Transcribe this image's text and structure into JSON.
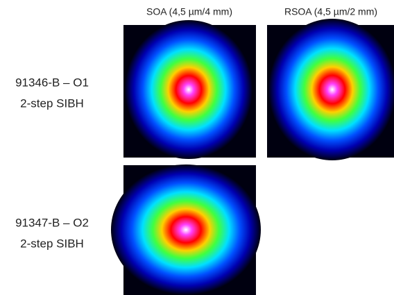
{
  "columns": [
    "SOA (4,5 µm/4 mm)",
    "RSOA (4,5 µm/2 mm)"
  ],
  "rows": [
    {
      "name": "91346-B – O1",
      "method": "2-step SIBH"
    },
    {
      "name": "91347-B – O2",
      "method": "2-step SIBH"
    }
  ]
}
